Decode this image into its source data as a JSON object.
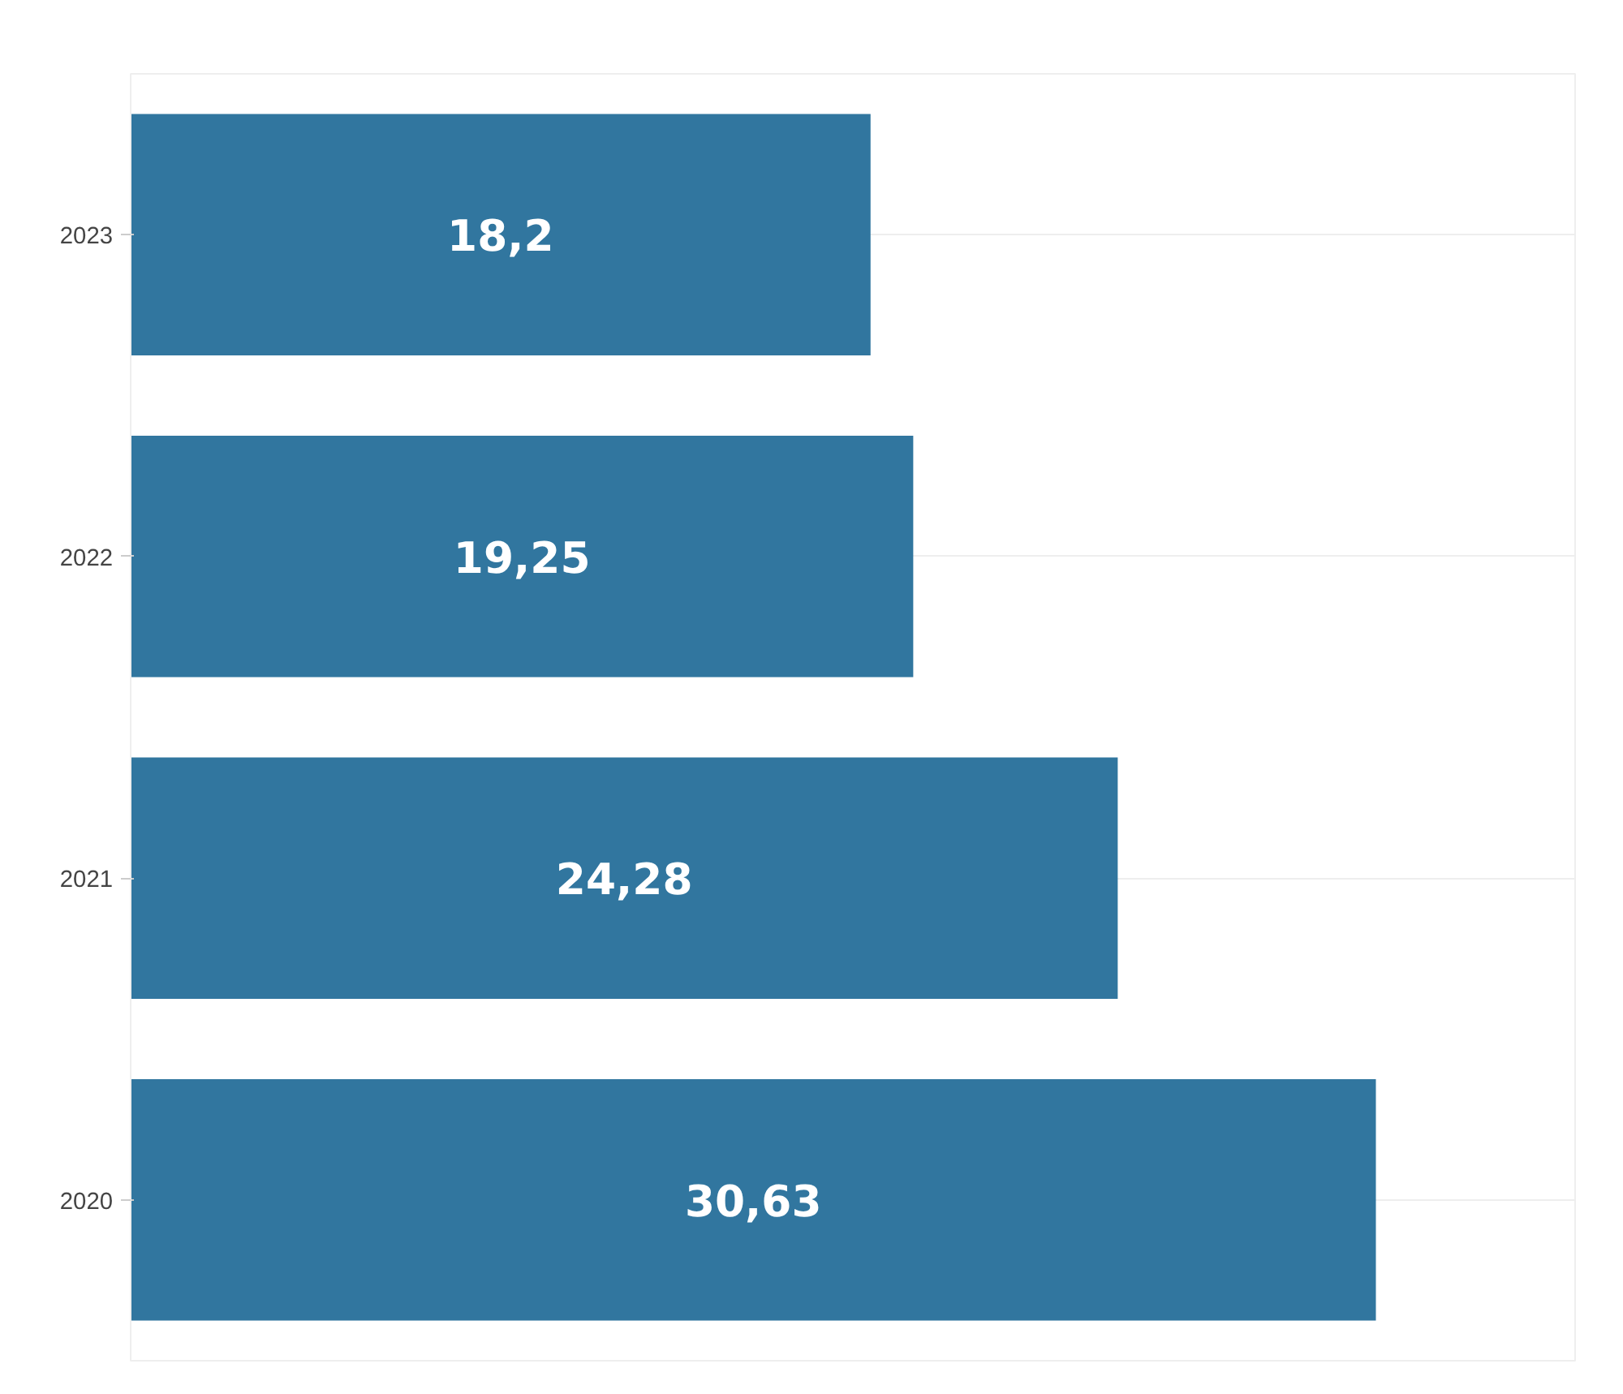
{
  "chart_data": {
    "type": "bar",
    "orientation": "horizontal",
    "categories": [
      "2023",
      "2022",
      "2021",
      "2020"
    ],
    "values": [
      18.2,
      19.25,
      24.28,
      30.63
    ],
    "value_labels": [
      "18,2",
      "19,25",
      "24,28",
      "30,63"
    ],
    "color": "#31769f",
    "grid": "y",
    "tick_labels": "y"
  }
}
